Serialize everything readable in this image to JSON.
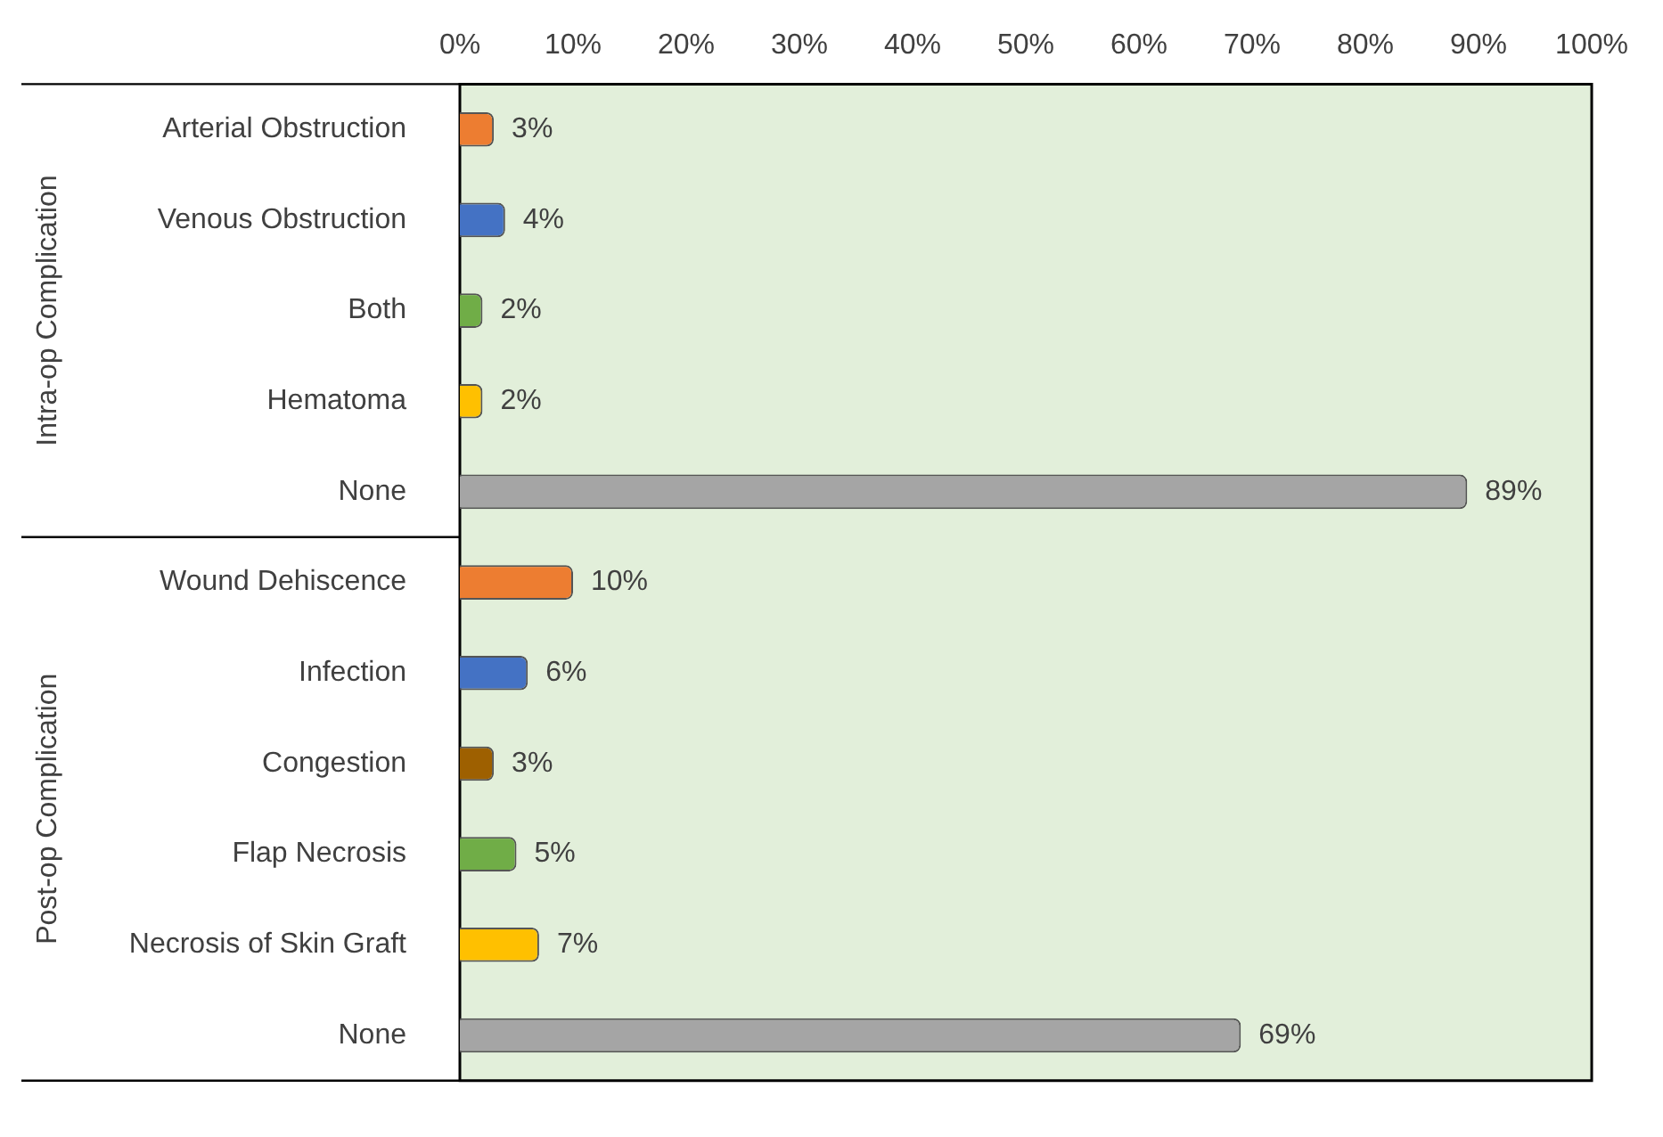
{
  "chart_data": {
    "type": "bar",
    "orientation": "horizontal",
    "categories": [
      "Arterial Obstruction",
      "Venous Obstruction",
      "Both",
      "Hematoma",
      "None",
      "Wound Dehiscence",
      "Infection",
      "Congestion",
      "Flap Necrosis",
      "Necrosis of Skin Graft",
      "None"
    ],
    "values": [
      3,
      4,
      2,
      2,
      89,
      10,
      6,
      3,
      5,
      7,
      69
    ],
    "colors": [
      "#ed7d31",
      "#4472c4",
      "#70ad47",
      "#ffc000",
      "#a5a5a5",
      "#ed7d31",
      "#4472c4",
      "#9e6000",
      "#70ad47",
      "#ffc000",
      "#a5a5a5"
    ],
    "value_labels": [
      "3%",
      "4%",
      "2%",
      "2%",
      "89%",
      "10%",
      "6%",
      "3%",
      "5%",
      "7%",
      "69%"
    ],
    "xlim": [
      0,
      100
    ],
    "xticks": [
      {
        "value": 0,
        "label": "0%"
      },
      {
        "value": 10,
        "label": "10%"
      },
      {
        "value": 20,
        "label": "20%"
      },
      {
        "value": 30,
        "label": "30%"
      },
      {
        "value": 40,
        "label": "40%"
      },
      {
        "value": 50,
        "label": "50%"
      },
      {
        "value": 60,
        "label": "60%"
      },
      {
        "value": 70,
        "label": "70%"
      },
      {
        "value": 80,
        "label": "80%"
      },
      {
        "value": 90,
        "label": "90%"
      },
      {
        "value": 100,
        "label": "100%"
      }
    ],
    "annotations": [
      "Intra-op Complication",
      "Post-op Complication"
    ],
    "grid": false,
    "legend": false
  }
}
